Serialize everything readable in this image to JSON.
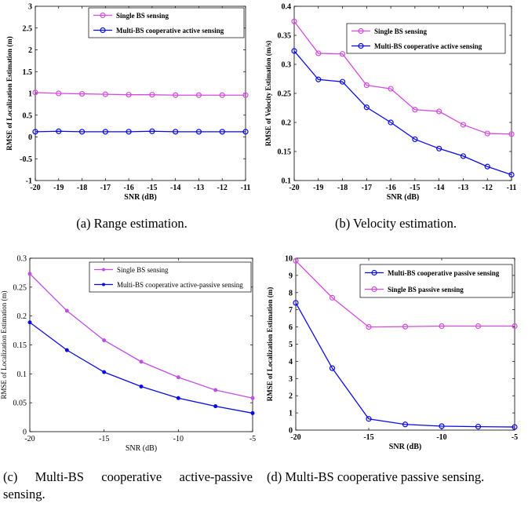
{
  "chart_data": [
    {
      "type": "line",
      "caption": "(a) Range estimation.",
      "xlabel": "SNR (dB)",
      "ylabel": "RMSE of Localization Estimation (m)",
      "bold": true,
      "xlim": [
        -20,
        -11
      ],
      "ylim": [
        -1,
        3
      ],
      "xticks": [
        -20,
        -19,
        -18,
        -17,
        -16,
        -15,
        -14,
        -13,
        -12,
        -11
      ],
      "yticks": [
        -1,
        -0.5,
        0,
        0.5,
        1,
        1.5,
        2,
        2.5,
        3
      ],
      "xticklabels": [
        "-20",
        "-19",
        "-18",
        "-17",
        "-16",
        "-15",
        "-14",
        "-13",
        "-12",
        "-11"
      ],
      "yticklabels": [
        "-1",
        "-0.5",
        "0",
        "0.5",
        "1",
        "1.5",
        "2",
        "2.5",
        "3"
      ],
      "legend_position": "top-right",
      "grid": false,
      "x": [
        -20,
        -19,
        -18,
        -17,
        -16,
        -15,
        -14,
        -13,
        -12,
        -11
      ],
      "series": [
        {
          "name": "Single BS sensing",
          "color": "#d44cdf",
          "marker": "circle",
          "values": [
            1.02,
            1.0,
            0.99,
            0.98,
            0.97,
            0.97,
            0.96,
            0.96,
            0.96,
            0.96
          ]
        },
        {
          "name": "Multi-BS cooperative active sensing",
          "color": "#0a0ae6",
          "marker": "circle",
          "values": [
            0.12,
            0.13,
            0.12,
            0.12,
            0.12,
            0.13,
            0.12,
            0.12,
            0.12,
            0.12
          ]
        }
      ]
    },
    {
      "type": "line",
      "caption": "(b) Velocity estimation.",
      "xlabel": "SNR (dB)",
      "ylabel": "RMSE of Velocity Estimation (m/s)",
      "bold": true,
      "xlim": [
        -20,
        -11
      ],
      "ylim": [
        0.1,
        0.4
      ],
      "xticks": [
        -20,
        -19,
        -18,
        -17,
        -16,
        -15,
        -14,
        -13,
        -12,
        -11
      ],
      "yticks": [
        0.1,
        0.15,
        0.2,
        0.25,
        0.3,
        0.35,
        0.4
      ],
      "xticklabels": [
        "-20",
        "-19",
        "-18",
        "-17",
        "-16",
        "-15",
        "-14",
        "-13",
        "-12",
        "-11"
      ],
      "yticklabels": [
        "0.1",
        "0.15",
        "0.2",
        "0.25",
        "0.3",
        "0.35",
        "0.4"
      ],
      "legend_position": "top-right",
      "grid": false,
      "x": [
        -20,
        -19,
        -18,
        -17,
        -16,
        -15,
        -14,
        -13,
        -12,
        -11
      ],
      "series": [
        {
          "name": "Single BS sensing",
          "color": "#d44cdf",
          "marker": "circle",
          "values": [
            0.374,
            0.319,
            0.318,
            0.264,
            0.258,
            0.222,
            0.219,
            0.196,
            0.181,
            0.18
          ]
        },
        {
          "name": "Multi-BS cooperative active sensing",
          "color": "#0a0ae6",
          "marker": "circle",
          "values": [
            0.323,
            0.274,
            0.27,
            0.226,
            0.2,
            0.171,
            0.155,
            0.142,
            0.124,
            0.11
          ]
        }
      ]
    },
    {
      "type": "line",
      "caption": "(c) Multi-BS cooperative active-passive sensing.",
      "xlabel": "SNR (dB)",
      "ylabel": "RMSE of Localization Estimation (m)",
      "bold": false,
      "xlim": [
        -20,
        -5
      ],
      "ylim": [
        0,
        0.3
      ],
      "xticks": [
        -20,
        -15,
        -10,
        -5
      ],
      "yticks": [
        0,
        0.05,
        0.1,
        0.15,
        0.2,
        0.25,
        0.3
      ],
      "xticklabels": [
        "-20",
        "-15",
        "-10",
        "-5"
      ],
      "yticklabels": [
        "0",
        "0.05",
        "0.1",
        "0.15",
        "0.2",
        "0.25",
        "0.3"
      ],
      "legend_position": "top-right",
      "grid": false,
      "x": [
        -20,
        -17.5,
        -15,
        -12.5,
        -10,
        -7.5,
        -5
      ],
      "series": [
        {
          "name": "Single BS sensing",
          "color": "#c04ee8",
          "marker": "dot",
          "values": [
            0.273,
            0.209,
            0.158,
            0.121,
            0.094,
            0.072,
            0.058
          ]
        },
        {
          "name": "Multi-BS cooperative active-passive sensing",
          "color": "#0a0ae6",
          "marker": "dot",
          "values": [
            0.189,
            0.141,
            0.103,
            0.078,
            0.058,
            0.044,
            0.032
          ]
        }
      ]
    },
    {
      "type": "line",
      "caption": "(d) Multi-BS cooperative passive sensing.",
      "xlabel": "SNR (dB)",
      "ylabel": "RMSE of Localization Estimation (m)",
      "bold": true,
      "xlim": [
        -20,
        -5
      ],
      "ylim": [
        0,
        10
      ],
      "xticks": [
        -20,
        -15,
        -10,
        -5
      ],
      "yticks": [
        0,
        1,
        2,
        3,
        4,
        5,
        6,
        7,
        8,
        9,
        10
      ],
      "xticklabels": [
        "-20",
        "-15",
        "-10",
        "-5"
      ],
      "yticklabels": [
        "0",
        "1",
        "2",
        "3",
        "4",
        "5",
        "6",
        "7",
        "8",
        "9",
        "10"
      ],
      "legend_position": "top-right",
      "grid": false,
      "x": [
        -20,
        -17.5,
        -15,
        -12.5,
        -10,
        -7.5,
        -5
      ],
      "series": [
        {
          "name": "Multi-BS cooperative passive sensing",
          "color": "#0a0ae6",
          "marker": "circle",
          "values": [
            7.4,
            3.6,
            0.65,
            0.33,
            0.23,
            0.2,
            0.18
          ]
        },
        {
          "name": "Single BS passive sensing",
          "color": "#d44cdf",
          "marker": "circle",
          "values": [
            9.85,
            7.7,
            6.0,
            6.02,
            6.05,
            6.05,
            6.05
          ]
        }
      ]
    }
  ]
}
